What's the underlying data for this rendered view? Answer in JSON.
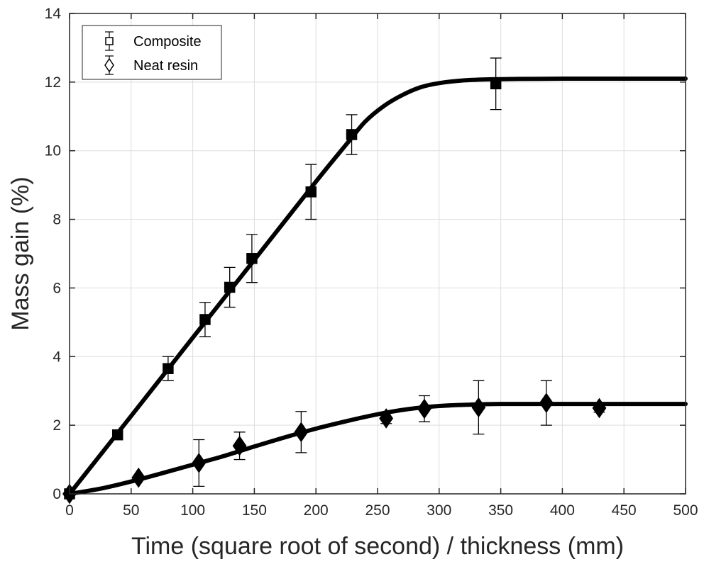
{
  "chart_data": {
    "type": "line",
    "title": "",
    "xlabel": "Time (square root of second) / thickness (mm)",
    "ylabel": "Mass gain (%)",
    "xlim": [
      0,
      500
    ],
    "ylim": [
      0,
      14
    ],
    "xticks": [
      0,
      50,
      100,
      150,
      200,
      250,
      300,
      350,
      400,
      450,
      500
    ],
    "yticks": [
      0,
      2,
      4,
      6,
      8,
      10,
      12,
      14
    ],
    "grid": true,
    "legend_position": "top-left",
    "series": [
      {
        "name": "Composite",
        "marker": "square",
        "points": [
          {
            "x": 0,
            "y": 0.0,
            "err": 0.0
          },
          {
            "x": 39,
            "y": 1.72,
            "err": 0.0
          },
          {
            "x": 80,
            "y": 3.65,
            "err": 0.35
          },
          {
            "x": 110,
            "y": 5.08,
            "err": 0.5
          },
          {
            "x": 130,
            "y": 6.02,
            "err": 0.58
          },
          {
            "x": 148,
            "y": 6.86,
            "err": 0.7
          },
          {
            "x": 196,
            "y": 8.8,
            "err": 0.8
          },
          {
            "x": 229,
            "y": 10.47,
            "err": 0.58
          },
          {
            "x": 346,
            "y": 11.95,
            "err": 0.75
          }
        ],
        "fit": [
          [
            0,
            0
          ],
          [
            50,
            2.27
          ],
          [
            100,
            4.55
          ],
          [
            150,
            6.82
          ],
          [
            200,
            9.1
          ],
          [
            225,
            10.2
          ],
          [
            240,
            10.85
          ],
          [
            255,
            11.3
          ],
          [
            270,
            11.62
          ],
          [
            285,
            11.85
          ],
          [
            300,
            11.97
          ],
          [
            320,
            12.05
          ],
          [
            340,
            12.08
          ],
          [
            360,
            12.09
          ],
          [
            400,
            12.1
          ],
          [
            500,
            12.1
          ]
        ]
      },
      {
        "name": "Neat resin",
        "marker": "diamond",
        "points": [
          {
            "x": 0,
            "y": 0.0,
            "err": 0.0
          },
          {
            "x": 56,
            "y": 0.47,
            "err": 0.0
          },
          {
            "x": 105,
            "y": 0.9,
            "err": 0.68
          },
          {
            "x": 138,
            "y": 1.4,
            "err": 0.4
          },
          {
            "x": 188,
            "y": 1.8,
            "err": 0.6
          },
          {
            "x": 257,
            "y": 2.2,
            "err": 0.15
          },
          {
            "x": 288,
            "y": 2.48,
            "err": 0.38
          },
          {
            "x": 332,
            "y": 2.52,
            "err": 0.78
          },
          {
            "x": 387,
            "y": 2.65,
            "err": 0.65
          },
          {
            "x": 430,
            "y": 2.5,
            "err": 0.12
          }
        ],
        "fit": [
          [
            0,
            0
          ],
          [
            25,
            0.15
          ],
          [
            50,
            0.36
          ],
          [
            75,
            0.6
          ],
          [
            100,
            0.85
          ],
          [
            125,
            1.1
          ],
          [
            150,
            1.38
          ],
          [
            175,
            1.65
          ],
          [
            200,
            1.9
          ],
          [
            225,
            2.12
          ],
          [
            250,
            2.32
          ],
          [
            275,
            2.47
          ],
          [
            300,
            2.56
          ],
          [
            325,
            2.6
          ],
          [
            350,
            2.62
          ],
          [
            400,
            2.62
          ],
          [
            500,
            2.62
          ]
        ]
      }
    ]
  }
}
